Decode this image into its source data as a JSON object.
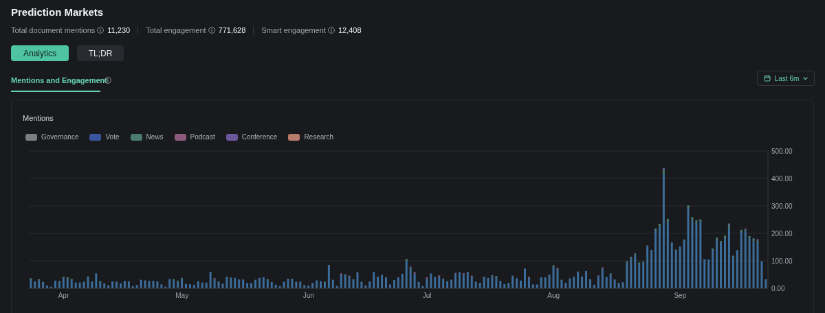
{
  "chart_data": {
    "type": "bar",
    "title": "Mentions",
    "annotations": [
      "Prediction Markets",
      "Total document mentions",
      "11,230",
      "Total engagement",
      "771,628",
      "Smart engagement",
      "12,408",
      "Analytics",
      "TL;DR",
      "Mentions and Engagement",
      "Last 6m"
    ],
    "categories": [
      null,
      null,
      null,
      null,
      null,
      null,
      null,
      null,
      "Apr",
      null,
      null,
      null,
      null,
      null,
      null,
      null,
      null,
      null,
      null,
      null,
      null,
      null,
      null,
      null,
      null,
      null,
      null,
      null,
      null,
      null,
      null,
      null,
      null,
      null,
      null,
      null,
      null,
      "May",
      null,
      null,
      null,
      null,
      null,
      null,
      null,
      null,
      null,
      null,
      null,
      null,
      null,
      null,
      null,
      null,
      null,
      null,
      null,
      null,
      null,
      null,
      null,
      null,
      null,
      null,
      null,
      null,
      null,
      null,
      "Jun",
      null,
      null,
      null,
      null,
      null,
      null,
      null,
      null,
      null,
      null,
      null,
      null,
      null,
      null,
      null,
      null,
      null,
      null,
      null,
      null,
      null,
      null,
      null,
      null,
      null,
      null,
      null,
      null,
      "Jul",
      null,
      null,
      null,
      null,
      null,
      null,
      null,
      null,
      null,
      null,
      null,
      null,
      null,
      null,
      null,
      null,
      null,
      null,
      null,
      null,
      null,
      null,
      null,
      null,
      null,
      null,
      null,
      null,
      null,
      null,
      "Aug",
      null,
      null,
      null,
      null,
      null,
      null,
      null,
      null,
      null,
      null,
      null,
      null,
      null,
      null,
      null,
      null,
      null,
      null,
      null,
      null,
      null,
      null,
      null,
      null,
      null,
      null,
      null,
      null,
      null,
      null,
      "Sep",
      null,
      null,
      null,
      null,
      null,
      null,
      null,
      null,
      null,
      null,
      null,
      null,
      null,
      null,
      null,
      null,
      null,
      null,
      null,
      null,
      null
    ],
    "stacked": true,
    "series": [
      {
        "color": "#3d6d9b",
        "values": [
          33,
          25,
          29,
          23,
          10,
          6,
          28,
          23,
          38,
          35,
          30,
          21,
          21,
          24,
          40,
          25,
          54,
          23,
          18,
          11,
          25,
          24,
          18,
          27,
          25,
          8,
          12,
          31,
          29,
          27,
          27,
          25,
          14,
          6,
          34,
          29,
          23,
          34,
          16,
          15,
          13,
          26,
          21,
          21,
          60,
          32,
          25,
          17,
          42,
          39,
          38,
          32,
          32,
          19,
          19,
          31,
          38,
          40,
          30,
          23,
          13,
          8,
          24,
          35,
          35,
          24,
          24,
          12,
          10,
          20,
          29,
          26,
          20,
          85,
          31,
          9,
          50,
          51,
          42,
          33,
          59,
          24,
          11,
          25,
          59,
          42,
          49,
          40,
          14,
          30,
          40,
          53,
          99,
          68,
          54,
          23,
          8,
          36,
          54,
          42,
          43,
          35,
          26,
          31,
          51,
          59,
          51,
          60,
          42,
          24,
          20,
          42,
          38,
          44,
          41,
          27,
          15,
          20,
          46,
          37,
          28,
          72,
          38,
          14,
          14,
          40,
          40,
          50,
          78,
          70,
          31,
          20,
          36,
          42,
          61,
          43,
          63,
          33,
          13,
          43,
          72,
          41,
          50,
          32,
          20,
          22,
          94,
          109,
          121,
          90,
          94,
          156,
          140,
          210,
          227,
          416,
          241,
          167,
          138,
          152,
          178,
          290,
          249,
          238,
          243,
          106,
          105,
          140,
          175,
          166,
          182,
          218,
          115,
          139,
          205,
          207,
          182,
          172,
          165,
          99,
          33
        ]
      },
      {
        "name": "Governance",
        "color": "#7b7d80",
        "values": [
          0,
          0,
          0,
          0,
          0,
          0,
          0,
          0,
          0,
          0,
          0,
          0,
          0,
          0,
          0,
          0,
          0,
          0,
          0,
          0,
          0,
          0,
          0,
          0,
          0,
          0,
          0,
          0,
          0,
          0,
          0,
          0,
          0,
          0,
          0,
          0,
          0,
          0,
          0,
          0,
          0,
          0,
          0,
          0,
          0,
          0,
          0,
          0,
          0,
          0,
          0,
          0,
          0,
          0,
          0,
          0,
          0,
          0,
          0,
          0,
          0,
          0,
          0,
          0,
          0,
          0,
          0,
          0,
          0,
          0,
          0,
          0,
          0,
          0,
          0,
          0,
          0,
          0,
          0,
          0,
          0,
          0,
          0,
          0,
          0,
          0,
          0,
          0,
          0,
          0,
          0,
          0,
          0,
          0,
          0,
          0,
          0,
          0,
          0,
          0,
          0,
          0,
          0,
          0,
          0,
          0,
          0,
          0,
          0,
          0,
          0,
          0,
          0,
          0,
          0,
          0,
          0,
          0,
          0,
          0,
          0,
          0,
          0,
          0,
          0,
          0,
          0,
          0,
          0,
          0,
          0,
          0,
          0,
          0,
          0,
          0,
          0,
          0,
          0,
          0,
          0,
          0,
          0,
          0,
          0,
          0,
          0,
          0,
          0,
          0,
          0,
          0,
          0,
          0,
          0,
          0,
          0,
          0,
          0,
          0,
          0,
          0,
          0,
          0,
          0,
          0,
          0,
          0,
          0,
          0,
          0,
          0,
          0,
          0,
          0,
          0,
          0,
          0,
          0,
          0,
          0
        ]
      },
      {
        "name": "Vote",
        "color": "#3b55a0",
        "values": [
          0,
          0,
          0,
          0,
          0,
          0,
          0,
          0,
          0,
          0,
          0,
          0,
          0,
          0,
          0,
          0,
          0,
          0,
          0,
          0,
          0,
          0,
          0,
          0,
          0,
          0,
          0,
          0,
          0,
          0,
          0,
          0,
          0,
          0,
          0,
          0,
          0,
          0,
          0,
          0,
          0,
          0,
          0,
          0,
          0,
          0,
          0,
          0,
          0,
          0,
          0,
          0,
          0,
          0,
          0,
          0,
          0,
          0,
          0,
          0,
          0,
          0,
          0,
          0,
          0,
          0,
          0,
          0,
          0,
          0,
          0,
          0,
          0,
          0,
          0,
          0,
          0,
          0,
          0,
          0,
          0,
          0,
          0,
          0,
          0,
          0,
          0,
          0,
          0,
          0,
          0,
          0,
          0,
          0,
          0,
          0,
          0,
          0,
          0,
          0,
          0,
          0,
          0,
          0,
          0,
          0,
          0,
          0,
          0,
          0,
          0,
          0,
          0,
          0,
          0,
          0,
          0,
          0,
          0,
          0,
          0,
          0,
          0,
          0,
          0,
          0,
          0,
          0,
          0,
          0,
          0,
          0,
          0,
          0,
          0,
          0,
          0,
          0,
          0,
          0,
          0,
          0,
          0,
          0,
          0,
          0,
          0,
          0,
          0,
          0,
          0,
          0,
          0,
          0,
          0,
          0,
          0,
          0,
          0,
          0,
          0,
          0,
          0,
          0,
          0,
          0,
          0,
          0,
          0,
          0,
          0,
          0,
          0,
          0,
          0,
          0,
          0,
          0,
          0,
          0,
          0
        ]
      },
      {
        "name": "News",
        "color": "#4b7b6c",
        "values": [
          4,
          0,
          4,
          0,
          0,
          0,
          0,
          4,
          4,
          5,
          4,
          0,
          0,
          0,
          3,
          0,
          0,
          4,
          0,
          0,
          0,
          0,
          0,
          0,
          0,
          0,
          0,
          0,
          0,
          0,
          0,
          0,
          0,
          0,
          0,
          4,
          5,
          4,
          0,
          0,
          0,
          0,
          0,
          0,
          0,
          0,
          0,
          0,
          0,
          0,
          0,
          0,
          0,
          0,
          0,
          0,
          0,
          0,
          3,
          0,
          0,
          0,
          0,
          0,
          0,
          0,
          0,
          0,
          0,
          0,
          0,
          0,
          4,
          0,
          0,
          0,
          0,
          0,
          0,
          0,
          0,
          0,
          0,
          0,
          0,
          0,
          0,
          0,
          0,
          0,
          0,
          0,
          8,
          6,
          0,
          0,
          0,
          0,
          0,
          0,
          0,
          0,
          0,
          0,
          0,
          0,
          0,
          0,
          0,
          0,
          0,
          0,
          0,
          4,
          4,
          0,
          0,
          0,
          0,
          0,
          0,
          0,
          0,
          0,
          0,
          0,
          0,
          0,
          6,
          0,
          0,
          0,
          0,
          0,
          0,
          0,
          0,
          0,
          0,
          0,
          0,
          0,
          4,
          0,
          0,
          0,
          5,
          6,
          6,
          4,
          4,
          0,
          0,
          8,
          8,
          18,
          12,
          0,
          3,
          0,
          0,
          12,
          10,
          10,
          8,
          0,
          0,
          5,
          10,
          6,
          10,
          12,
          4,
          0,
          8,
          6,
          8,
          10,
          8,
          0,
          0
        ]
      },
      {
        "name": "Podcast",
        "color": "#8b5a7c",
        "values": [
          0,
          0,
          0,
          0,
          0,
          0,
          0,
          0,
          0,
          0,
          0,
          0,
          0,
          0,
          0,
          0,
          0,
          0,
          0,
          0,
          0,
          0,
          0,
          0,
          0,
          0,
          0,
          0,
          0,
          0,
          0,
          0,
          0,
          0,
          0,
          0,
          0,
          0,
          0,
          0,
          0,
          0,
          0,
          0,
          0,
          5,
          0,
          0,
          0,
          0,
          0,
          0,
          0,
          0,
          0,
          0,
          0,
          0,
          0,
          0,
          0,
          0,
          0,
          0,
          0,
          0,
          0,
          0,
          0,
          0,
          0,
          0,
          0,
          0,
          0,
          0,
          4,
          0,
          4,
          0,
          0,
          0,
          0,
          0,
          0,
          0,
          0,
          0,
          0,
          0,
          0,
          0,
          0,
          0,
          5,
          0,
          0,
          4,
          0,
          0,
          4,
          0,
          0,
          0,
          0,
          0,
          4,
          0,
          4,
          0,
          0,
          0,
          0,
          0,
          0,
          0,
          0,
          0,
          0,
          0,
          0,
          0,
          4,
          0,
          0,
          0,
          0,
          0,
          0,
          4,
          0,
          0,
          0,
          0,
          0,
          0,
          0,
          0,
          0,
          0,
          4,
          0,
          0,
          0,
          0,
          0,
          0,
          0,
          0,
          0,
          0,
          0,
          0,
          0,
          0,
          0,
          0,
          0,
          0,
          0,
          0,
          0,
          0,
          0,
          0,
          0,
          0,
          0,
          0,
          0,
          0,
          0,
          0,
          0,
          0,
          0,
          0,
          0,
          0,
          0,
          0
        ]
      },
      {
        "name": "Conference",
        "color": "#6b579b",
        "values": [
          0,
          0,
          0,
          0,
          0,
          0,
          0,
          0,
          0,
          0,
          0,
          0,
          0,
          0,
          0,
          0,
          0,
          0,
          0,
          0,
          0,
          0,
          0,
          0,
          0,
          0,
          0,
          0,
          0,
          0,
          0,
          0,
          0,
          0,
          0,
          0,
          0,
          0,
          0,
          0,
          0,
          0,
          0,
          0,
          0,
          0,
          0,
          0,
          0,
          0,
          0,
          0,
          0,
          0,
          0,
          0,
          0,
          0,
          0,
          0,
          0,
          0,
          0,
          0,
          0,
          0,
          0,
          0,
          0,
          0,
          0,
          0,
          0,
          0,
          0,
          0,
          0,
          0,
          0,
          0,
          0,
          0,
          0,
          0,
          0,
          0,
          0,
          0,
          0,
          0,
          0,
          0,
          0,
          5,
          0,
          0,
          0,
          0,
          0,
          0,
          0,
          0,
          0,
          0,
          5,
          0,
          0,
          0,
          0,
          0,
          0,
          0,
          0,
          0,
          0,
          0,
          0,
          0,
          0,
          0,
          0,
          0,
          0,
          0,
          0,
          0,
          0,
          0,
          0,
          0,
          0,
          0,
          0,
          0,
          0,
          0,
          0,
          0,
          0,
          4,
          0,
          0,
          0,
          0,
          0,
          0,
          0,
          0,
          0,
          0,
          0,
          0,
          0,
          0,
          0,
          4,
          0,
          0,
          0,
          0,
          0,
          0,
          0,
          0,
          0,
          0,
          0,
          0,
          0,
          0,
          0,
          6,
          0,
          0,
          0,
          5,
          0,
          0,
          6,
          0,
          0
        ]
      },
      {
        "name": "Research",
        "color": "#b87c6c",
        "values": [
          0,
          0,
          0,
          0,
          0,
          0,
          0,
          0,
          0,
          0,
          0,
          0,
          0,
          0,
          0,
          0,
          0,
          0,
          0,
          0,
          0,
          0,
          0,
          0,
          0,
          0,
          0,
          0,
          0,
          0,
          0,
          0,
          0,
          0,
          0,
          0,
          0,
          0,
          0,
          0,
          0,
          0,
          0,
          0,
          0,
          0,
          0,
          0,
          0,
          0,
          0,
          0,
          0,
          0,
          0,
          0,
          0,
          0,
          0,
          0,
          0,
          0,
          0,
          0,
          0,
          0,
          0,
          0,
          0,
          0,
          0,
          0,
          0,
          0,
          0,
          0,
          0,
          0,
          0,
          0,
          0,
          0,
          0,
          0,
          0,
          0,
          0,
          0,
          0,
          0,
          0,
          0,
          0,
          0,
          0,
          0,
          0,
          0,
          0,
          0,
          0,
          0,
          0,
          0,
          0,
          0,
          0,
          0,
          0,
          0,
          0,
          0,
          0,
          0,
          0,
          0,
          0,
          0,
          0,
          0,
          0,
          0,
          0,
          0,
          0,
          0,
          0,
          0,
          0,
          0,
          0,
          0,
          0,
          0,
          0,
          0,
          0,
          0,
          0,
          0,
          0,
          0,
          0,
          0,
          0,
          0,
          0,
          0,
          0,
          0,
          0,
          0,
          0,
          0,
          0,
          0,
          0,
          0,
          0,
          0,
          0,
          0,
          0,
          0,
          0,
          0,
          0,
          0,
          0,
          0,
          0,
          0,
          0,
          0,
          0,
          0,
          0,
          0,
          0,
          0,
          0
        ]
      }
    ],
    "ylim": [
      0,
      500
    ],
    "yticks": [
      {
        "value": 0,
        "label": "0.00"
      },
      {
        "value": 100,
        "label": "100.00"
      },
      {
        "value": 200,
        "label": "200.00"
      },
      {
        "value": 300,
        "label": "300.00"
      },
      {
        "value": 400,
        "label": "400.00"
      },
      {
        "value": 500,
        "label": "500.00"
      }
    ],
    "grid": "y",
    "legend": "top left"
  }
}
